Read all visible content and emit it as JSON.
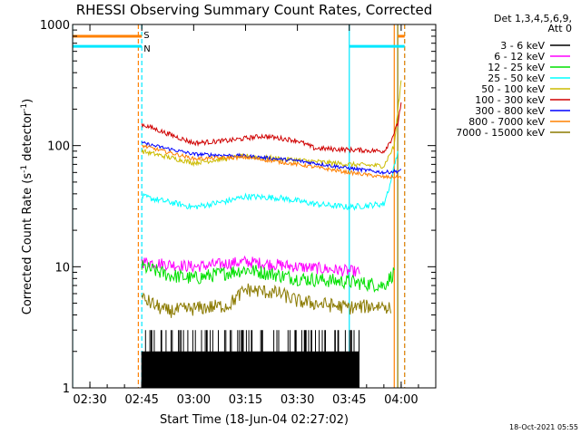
{
  "chart_data": {
    "type": "line",
    "title": "RHESSI Observing Summary Count Rates, Corrected",
    "xlabel": "Start Time (18-Jun-04 02:27:02)",
    "ylabel": "Corrected Count Rate (s",
    "ylabel_sup1": "-1",
    "ylabel_mid": " detector",
    "ylabel_sup2": "-1",
    "ylabel_end": ")",
    "y_scale": "log",
    "ylim": [
      1,
      1000
    ],
    "xlim": [
      "02:25",
      "04:10"
    ],
    "x_ticks": [
      "02:30",
      "02:45",
      "03:00",
      "03:15",
      "03:30",
      "03:45",
      "04:00"
    ],
    "y_ticks": [
      {
        "value": 1,
        "label": "1"
      },
      {
        "value": 10,
        "label": "10"
      },
      {
        "value": 100,
        "label": "100"
      },
      {
        "value": 1000,
        "label": "1000"
      }
    ],
    "legend_placement": "right",
    "legend_header": [
      "Det 1,3,4,5,6,9,",
      "Att 0"
    ],
    "timestamp": "18-Oct-2021 05:55",
    "flags": [
      {
        "label": "S",
        "color": "#ff8000",
        "value": 800,
        "segments": [
          [
            "02:25",
            "02:45"
          ],
          [
            "03:59",
            "04:01"
          ]
        ]
      },
      {
        "label": "N",
        "color": "#00e8ff",
        "value": 660,
        "segments": [
          [
            "02:25",
            "02:45"
          ],
          [
            "03:45",
            "04:01"
          ]
        ]
      }
    ],
    "vertical_lines": [
      {
        "time": "02:25",
        "color": "#00e8ff",
        "style": "solid"
      },
      {
        "time": "02:44",
        "color": "#ff8000",
        "style": "dashed"
      },
      {
        "time": "02:45",
        "color": "#00e8ff",
        "style": "dashed"
      },
      {
        "time": "03:45",
        "color": "#00e8ff",
        "style": "solid"
      },
      {
        "time": "03:58",
        "color": "#ff8000",
        "style": "solid"
      },
      {
        "time": "03:59",
        "color": "#8b7a00",
        "style": "solid"
      },
      {
        "time": "04:01",
        "color": "#00e8ff",
        "style": "dashed"
      },
      {
        "time": "04:01",
        "color": "#ff8000",
        "style": "dashed"
      }
    ],
    "series": [
      {
        "name": "3 - 6 keV",
        "color": "#000000",
        "noise": 0.12,
        "points": [
          [
            "02:45",
            2.2
          ],
          [
            "03:00",
            2.1
          ],
          [
            "03:15",
            2.5
          ],
          [
            "03:30",
            2.4
          ],
          [
            "03:44",
            2.2
          ],
          [
            "03:48",
            2.0
          ]
        ]
      },
      {
        "name": "6 - 12 keV",
        "color": "#ff00ff",
        "noise": 0.05,
        "points": [
          [
            "02:45",
            11
          ],
          [
            "03:00",
            10
          ],
          [
            "03:15",
            11
          ],
          [
            "03:30",
            10
          ],
          [
            "03:40",
            9.5
          ],
          [
            "03:48",
            9
          ]
        ]
      },
      {
        "name": "12 - 25 keV",
        "color": "#00e000",
        "noise": 0.06,
        "points": [
          [
            "02:45",
            10
          ],
          [
            "02:53",
            8.5
          ],
          [
            "03:00",
            8
          ],
          [
            "03:15",
            9.5
          ],
          [
            "03:30",
            8
          ],
          [
            "03:45",
            7.5
          ],
          [
            "03:55",
            7
          ],
          [
            "03:58",
            9
          ]
        ]
      },
      {
        "name": "25 - 50 keV",
        "color": "#00ffff",
        "noise": 0.025,
        "points": [
          [
            "02:45",
            38
          ],
          [
            "03:00",
            31
          ],
          [
            "03:10",
            35
          ],
          [
            "03:15",
            38
          ],
          [
            "03:25",
            37
          ],
          [
            "03:35",
            33
          ],
          [
            "03:45",
            31
          ],
          [
            "03:55",
            33
          ],
          [
            "03:57",
            50
          ],
          [
            "03:59",
            90
          ]
        ]
      },
      {
        "name": "50 - 100 keV",
        "color": "#ccbb00",
        "noise": 0.02,
        "points": [
          [
            "02:45",
            90
          ],
          [
            "03:00",
            72
          ],
          [
            "03:15",
            82
          ],
          [
            "03:30",
            76
          ],
          [
            "03:45",
            70
          ],
          [
            "03:55",
            68
          ],
          [
            "03:58",
            100
          ],
          [
            "04:00",
            350
          ]
        ]
      },
      {
        "name": "100 - 300 keV",
        "color": "#d00000",
        "noise": 0.02,
        "points": [
          [
            "02:45",
            150
          ],
          [
            "03:00",
            105
          ],
          [
            "03:10",
            110
          ],
          [
            "03:20",
            120
          ],
          [
            "03:30",
            110
          ],
          [
            "03:35",
            95
          ],
          [
            "03:55",
            90
          ],
          [
            "03:57",
            110
          ],
          [
            "03:59",
            150
          ],
          [
            "04:00",
            230
          ]
        ]
      },
      {
        "name": "300 - 800 keV",
        "color": "#0000ff",
        "noise": 0.015,
        "points": [
          [
            "02:45",
            105
          ],
          [
            "03:00",
            85
          ],
          [
            "03:15",
            82
          ],
          [
            "03:30",
            75
          ],
          [
            "03:45",
            65
          ],
          [
            "03:55",
            60
          ],
          [
            "04:00",
            62
          ]
        ]
      },
      {
        "name": "800 - 7000 keV",
        "color": "#ff8000",
        "noise": 0.015,
        "points": [
          [
            "02:45",
            100
          ],
          [
            "03:00",
            78
          ],
          [
            "03:15",
            80
          ],
          [
            "03:30",
            70
          ],
          [
            "03:45",
            60
          ],
          [
            "03:55",
            55
          ],
          [
            "04:00",
            55
          ]
        ]
      },
      {
        "name": "7000 - 15000 keV",
        "color": "#8b7a00",
        "noise": 0.06,
        "points": [
          [
            "02:45",
            5.5
          ],
          [
            "02:52",
            4.3
          ],
          [
            "03:00",
            4.5
          ],
          [
            "03:10",
            4.8
          ],
          [
            "03:15",
            6.5
          ],
          [
            "03:25",
            6.0
          ],
          [
            "03:30",
            5.2
          ],
          [
            "03:45",
            4.6
          ],
          [
            "03:55",
            4.8
          ],
          [
            "03:57",
            4.5
          ]
        ]
      }
    ]
  }
}
